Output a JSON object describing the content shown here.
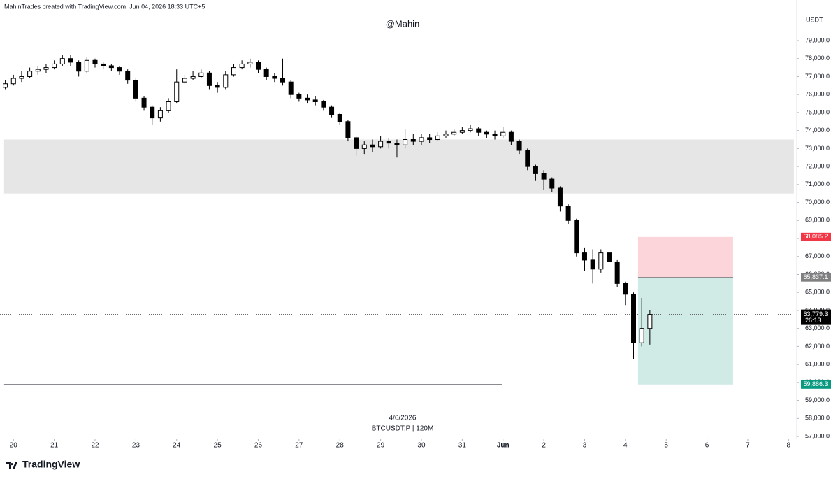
{
  "chart_data": {
    "type": "candlestick",
    "header": "MahinTrades created with TradingView.com, Jun 04, 2026 18:33 UTC+5",
    "title": "@Mahin",
    "currency": "USDT",
    "date_label": "4/6/2026",
    "symbol": "BTCUSDT.P | 120M",
    "brand": "TradingView",
    "up_color": "#ffffff",
    "down_color": "#000000",
    "grid": false,
    "xlim": [
      -0.33,
      19.2
    ],
    "ylim": [
      56400,
      80500
    ],
    "xticks": [
      {
        "value": 0,
        "label": "20"
      },
      {
        "value": 1,
        "label": "21"
      },
      {
        "value": 2,
        "label": "22"
      },
      {
        "value": 3,
        "label": "23"
      },
      {
        "value": 4,
        "label": "24"
      },
      {
        "value": 5,
        "label": "25"
      },
      {
        "value": 6,
        "label": "26"
      },
      {
        "value": 7,
        "label": "27"
      },
      {
        "value": 8,
        "label": "28"
      },
      {
        "value": 9,
        "label": "29"
      },
      {
        "value": 10,
        "label": "30"
      },
      {
        "value": 11,
        "label": "31"
      },
      {
        "value": 12,
        "label": "Jun"
      },
      {
        "value": 13,
        "label": "2"
      },
      {
        "value": 14,
        "label": "3"
      },
      {
        "value": 15,
        "label": "4"
      },
      {
        "value": 16,
        "label": "5"
      },
      {
        "value": 17,
        "label": "6"
      },
      {
        "value": 18,
        "label": "7"
      },
      {
        "value": 19,
        "label": "8"
      }
    ],
    "yticks": [
      {
        "value": 57000,
        "label": "57,000.0"
      },
      {
        "value": 58000,
        "label": "58,000.0"
      },
      {
        "value": 59000,
        "label": "59,000.0"
      },
      {
        "value": 60000,
        "label": "60,000.0"
      },
      {
        "value": 61000,
        "label": "61,000.0"
      },
      {
        "value": 62000,
        "label": "62,000.0"
      },
      {
        "value": 63000,
        "label": "63,000.0"
      },
      {
        "value": 64000,
        "label": "64,000.0"
      },
      {
        "value": 65000,
        "label": "65,000.0"
      },
      {
        "value": 66000,
        "label": "66,000.0"
      },
      {
        "value": 67000,
        "label": "67,000.0"
      },
      {
        "value": 68000,
        "label": "68,000.0"
      },
      {
        "value": 69000,
        "label": "69,000.0"
      },
      {
        "value": 70000,
        "label": "70,000.0"
      },
      {
        "value": 71000,
        "label": "71,000.0"
      },
      {
        "value": 72000,
        "label": "72,000.0"
      },
      {
        "value": 73000,
        "label": "73,000.0"
      },
      {
        "value": 74000,
        "label": "74,000.0"
      },
      {
        "value": 75000,
        "label": "75,000.0"
      },
      {
        "value": 76000,
        "label": "76,000.0"
      },
      {
        "value": 77000,
        "label": "77,000.0"
      },
      {
        "value": 78000,
        "label": "78,000.0"
      },
      {
        "value": 79000,
        "label": "79,000.0"
      }
    ],
    "x": [
      -0.2,
      0,
      0.2,
      0.4,
      0.6,
      0.8,
      1,
      1.2,
      1.4,
      1.6,
      1.8,
      2,
      2.2,
      2.4,
      2.6,
      2.8,
      3,
      3.2,
      3.4,
      3.6,
      3.8,
      4,
      4.2,
      4.4,
      4.6,
      4.8,
      5,
      5.2,
      5.4,
      5.6,
      5.8,
      6,
      6.2,
      6.4,
      6.6,
      6.8,
      7,
      7.2,
      7.4,
      7.6,
      7.8,
      8,
      8.2,
      8.4,
      8.6,
      8.8,
      9,
      9.2,
      9.4,
      9.6,
      9.8,
      10,
      10.2,
      10.4,
      10.6,
      10.8,
      11,
      11.2,
      11.4,
      11.6,
      11.8,
      12,
      12.2,
      12.4,
      12.6,
      12.8,
      13,
      13.2,
      13.4,
      13.6,
      13.8,
      14,
      14.2,
      14.4,
      14.6,
      14.8,
      15,
      15.2,
      15.4,
      15.6
    ],
    "open": [
      76400,
      76600,
      76900,
      77000,
      77300,
      77400,
      77500,
      77700,
      78000,
      77800,
      77300,
      77900,
      77700,
      77600,
      77500,
      77300,
      76800,
      75800,
      75300,
      74700,
      75100,
      75600,
      76700,
      76900,
      77000,
      77200,
      76500,
      76400,
      77100,
      77500,
      77700,
      77800,
      77400,
      77000,
      76900,
      76700,
      76000,
      75800,
      75700,
      75600,
      75300,
      74900,
      74500,
      73600,
      73000,
      73200,
      73100,
      73400,
      73300,
      73200,
      73500,
      73400,
      73600,
      73500,
      73700,
      73800,
      73900,
      74000,
      74100,
      73900,
      73800,
      73700,
      73900,
      73400,
      72900,
      72000,
      71600,
      71300,
      70800,
      69800,
      69000,
      67200,
      66800,
      66300,
      67200,
      66700,
      65500,
      64900,
      62200,
      63000
    ],
    "high": [
      76800,
      77100,
      77300,
      77500,
      77600,
      77700,
      77900,
      78200,
      78200,
      77900,
      78100,
      78000,
      77800,
      77700,
      77600,
      77400,
      76900,
      75900,
      75400,
      75300,
      75800,
      77400,
      77100,
      77300,
      77400,
      77300,
      76700,
      77300,
      77700,
      77900,
      78000,
      77900,
      77500,
      77200,
      78000,
      76800,
      76100,
      76000,
      75900,
      75700,
      75400,
      75000,
      74600,
      73700,
      73400,
      73500,
      73700,
      73600,
      73500,
      74100,
      73800,
      73800,
      73800,
      73900,
      74000,
      74100,
      74200,
      74300,
      74200,
      74000,
      74000,
      74200,
      74000,
      73500,
      73000,
      72100,
      71800,
      71400,
      70900,
      69900,
      69100,
      67500,
      67400,
      67400,
      67300,
      66800,
      65600,
      65000,
      64700,
      64000
    ],
    "low": [
      76300,
      76500,
      76700,
      76900,
      77100,
      77200,
      77400,
      77600,
      77600,
      77000,
      77200,
      77500,
      77400,
      77300,
      77100,
      76600,
      75600,
      75100,
      74300,
      74500,
      75000,
      75500,
      76600,
      76800,
      76900,
      76300,
      76100,
      76300,
      77000,
      77400,
      77500,
      77200,
      76800,
      76700,
      76500,
      75800,
      75600,
      75500,
      75400,
      75100,
      74700,
      74300,
      73400,
      72600,
      72700,
      72800,
      73000,
      73000,
      72500,
      73000,
      73200,
      73200,
      73300,
      73400,
      73600,
      73700,
      73800,
      73900,
      73700,
      73600,
      73500,
      73600,
      73200,
      72700,
      71800,
      71200,
      70700,
      70600,
      69500,
      68800,
      67000,
      66200,
      65500,
      66100,
      66400,
      65300,
      64300,
      61300,
      62000,
      62100
    ],
    "close": [
      76600,
      76900,
      77000,
      77300,
      77400,
      77500,
      77700,
      78000,
      77800,
      77300,
      77900,
      77700,
      77600,
      77500,
      77300,
      76800,
      75800,
      75300,
      74700,
      75100,
      75600,
      76700,
      76900,
      77000,
      77200,
      76500,
      76400,
      77100,
      77500,
      77700,
      77800,
      77400,
      77000,
      76900,
      76700,
      76000,
      75800,
      75700,
      75600,
      75300,
      74900,
      74500,
      73600,
      73000,
      73200,
      73100,
      73400,
      73300,
      73200,
      73500,
      73400,
      73600,
      73500,
      73700,
      73800,
      73900,
      74000,
      74100,
      73900,
      73800,
      73700,
      73900,
      73400,
      72900,
      72000,
      71600,
      71300,
      70800,
      69800,
      69000,
      67200,
      66800,
      66300,
      67200,
      66700,
      65500,
      64900,
      62200,
      63000,
      63779.3
    ],
    "zone": {
      "x_start": -0.23,
      "x_end": 19.13,
      "low": 70500,
      "high": 73500,
      "color": "#e6e6e6"
    },
    "support_line": {
      "x_start": -0.23,
      "x_end": 11.97,
      "value": 59880
    },
    "position": {
      "x_start": 15.31,
      "x_end": 17.64,
      "stop": {
        "value": 68085.2,
        "label": "68,085.2",
        "color": "#f23645",
        "fill": "#fbd5da"
      },
      "entry": {
        "value": 65837.1,
        "label": "65,837.1",
        "color": "#808080"
      },
      "target": {
        "value": 59886.3,
        "label": "59,886.3",
        "color": "#089981",
        "fill": "#d0ebe6"
      }
    },
    "last_price": {
      "value": 63779.3,
      "label": "63,779.3",
      "countdown": "26:13",
      "color": "#000000"
    }
  }
}
